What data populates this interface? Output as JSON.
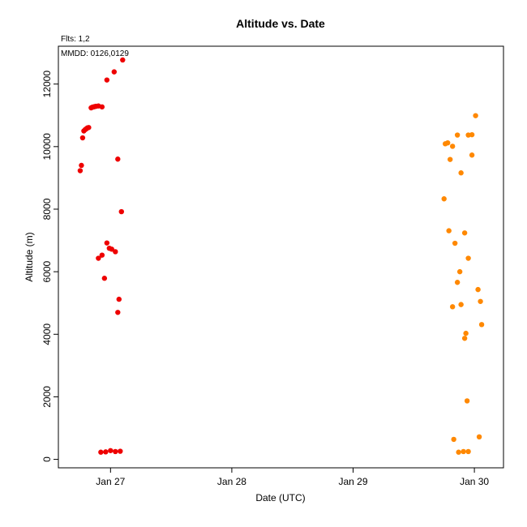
{
  "chart_data": {
    "type": "scatter",
    "title": "Altitude  vs. Date",
    "annotations": [
      "Flts: 1,2",
      "MMDD: 0126,0129"
    ],
    "xlabel": "Date (UTC)",
    "ylabel": "Altitude (m)",
    "x_ticks": [
      {
        "value": 27,
        "label": "Jan 27"
      },
      {
        "value": 28,
        "label": "Jan 28"
      },
      {
        "value": 29,
        "label": "Jan 29"
      },
      {
        "value": 30,
        "label": "Jan 30"
      }
    ],
    "y_ticks": [
      0,
      2000,
      4000,
      6000,
      8000,
      10000,
      12000
    ],
    "xlim": [
      26.57,
      30.24
    ],
    "ylim": [
      -270,
      13210
    ],
    "grid": false,
    "legend": "none",
    "series": [
      {
        "color": "#ee0000",
        "points": [
          [
            26.75,
            9230
          ],
          [
            26.76,
            9400
          ],
          [
            26.77,
            10280
          ],
          [
            26.78,
            10500
          ],
          [
            26.79,
            10540
          ],
          [
            26.8,
            10570
          ],
          [
            26.81,
            10600
          ],
          [
            26.82,
            10610
          ],
          [
            26.84,
            11240
          ],
          [
            26.85,
            11260
          ],
          [
            26.86,
            11270
          ],
          [
            26.87,
            11280
          ],
          [
            26.88,
            11290
          ],
          [
            26.9,
            11300
          ],
          [
            26.93,
            11270
          ],
          [
            26.97,
            12130
          ],
          [
            27.03,
            12390
          ],
          [
            27.06,
            9600
          ],
          [
            27.1,
            12770
          ],
          [
            27.09,
            7920
          ],
          [
            26.9,
            6430
          ],
          [
            26.93,
            6530
          ],
          [
            26.97,
            6920
          ],
          [
            26.99,
            6750
          ],
          [
            27.01,
            6720
          ],
          [
            27.04,
            6640
          ],
          [
            26.95,
            5790
          ],
          [
            27.07,
            5120
          ],
          [
            27.06,
            4700
          ],
          [
            26.92,
            230
          ],
          [
            26.96,
            240
          ],
          [
            27.0,
            280
          ],
          [
            27.04,
            250
          ],
          [
            27.08,
            260
          ]
        ]
      },
      {
        "color": "#ff8800",
        "points": [
          [
            29.75,
            8330
          ],
          [
            29.76,
            10090
          ],
          [
            29.78,
            10120
          ],
          [
            29.8,
            9590
          ],
          [
            29.82,
            10010
          ],
          [
            29.86,
            10370
          ],
          [
            29.89,
            9160
          ],
          [
            29.95,
            10370
          ],
          [
            29.98,
            10380
          ],
          [
            29.98,
            9730
          ],
          [
            30.01,
            10990
          ],
          [
            29.79,
            7310
          ],
          [
            29.84,
            6910
          ],
          [
            29.92,
            7240
          ],
          [
            29.95,
            6430
          ],
          [
            29.88,
            6000
          ],
          [
            29.86,
            5660
          ],
          [
            30.03,
            5430
          ],
          [
            29.82,
            4880
          ],
          [
            29.89,
            4950
          ],
          [
            30.05,
            5050
          ],
          [
            29.93,
            4030
          ],
          [
            29.92,
            3870
          ],
          [
            30.06,
            4310
          ],
          [
            29.94,
            1870
          ],
          [
            29.83,
            640
          ],
          [
            29.87,
            230
          ],
          [
            29.91,
            250
          ],
          [
            29.95,
            250
          ],
          [
            30.04,
            720
          ]
        ]
      }
    ]
  }
}
